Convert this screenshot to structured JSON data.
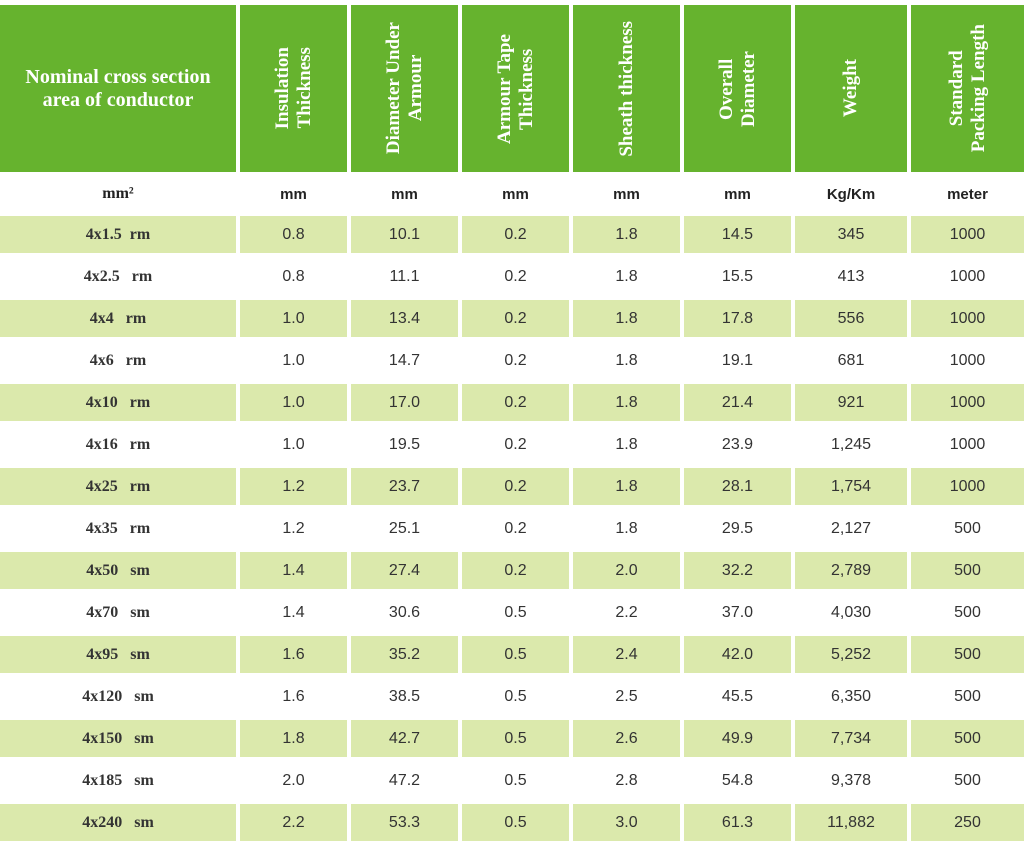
{
  "colors": {
    "header_green": "#66b32e",
    "row_shade": "#dbe9ac"
  },
  "headers": [
    "Nominal cross section\narea of conductor",
    "Insulation\nThickness",
    "Diameter Under\nArmour",
    "Armour Tape\nThickness",
    "Sheath thickness",
    "Overall\nDiameter",
    "Weight",
    "Standard\nPacking Length"
  ],
  "units": [
    "mm²",
    "mm",
    "mm",
    "mm",
    "mm",
    "mm",
    "Kg/Km",
    "meter"
  ],
  "rows": [
    [
      "4x1.5  rm",
      "0.8",
      "10.1",
      "0.2",
      "1.8",
      "14.5",
      "345",
      "1000"
    ],
    [
      "4x2.5   rm",
      "0.8",
      "11.1",
      "0.2",
      "1.8",
      "15.5",
      "413",
      "1000"
    ],
    [
      "4x4   rm",
      "1.0",
      "13.4",
      "0.2",
      "1.8",
      "17.8",
      "556",
      "1000"
    ],
    [
      "4x6   rm",
      "1.0",
      "14.7",
      "0.2",
      "1.8",
      "19.1",
      "681",
      "1000"
    ],
    [
      "4x10   rm",
      "1.0",
      "17.0",
      "0.2",
      "1.8",
      "21.4",
      "921",
      "1000"
    ],
    [
      "4x16   rm",
      "1.0",
      "19.5",
      "0.2",
      "1.8",
      "23.9",
      "1,245",
      "1000"
    ],
    [
      "4x25   rm",
      "1.2",
      "23.7",
      "0.2",
      "1.8",
      "28.1",
      "1,754",
      "1000"
    ],
    [
      "4x35   rm",
      "1.2",
      "25.1",
      "0.2",
      "1.8",
      "29.5",
      "2,127",
      "500"
    ],
    [
      "4x50   sm",
      "1.4",
      "27.4",
      "0.2",
      "2.0",
      "32.2",
      "2,789",
      "500"
    ],
    [
      "4x70   sm",
      "1.4",
      "30.6",
      "0.5",
      "2.2",
      "37.0",
      "4,030",
      "500"
    ],
    [
      "4x95   sm",
      "1.6",
      "35.2",
      "0.5",
      "2.4",
      "42.0",
      "5,252",
      "500"
    ],
    [
      "4x120   sm",
      "1.6",
      "38.5",
      "0.5",
      "2.5",
      "45.5",
      "6,350",
      "500"
    ],
    [
      "4x150   sm",
      "1.8",
      "42.7",
      "0.5",
      "2.6",
      "49.9",
      "7,734",
      "500"
    ],
    [
      "4x185   sm",
      "2.0",
      "47.2",
      "0.5",
      "2.8",
      "54.8",
      "9,378",
      "500"
    ],
    [
      "4x240   sm",
      "2.2",
      "53.3",
      "0.5",
      "3.0",
      "61.3",
      "11,882",
      "250"
    ]
  ]
}
